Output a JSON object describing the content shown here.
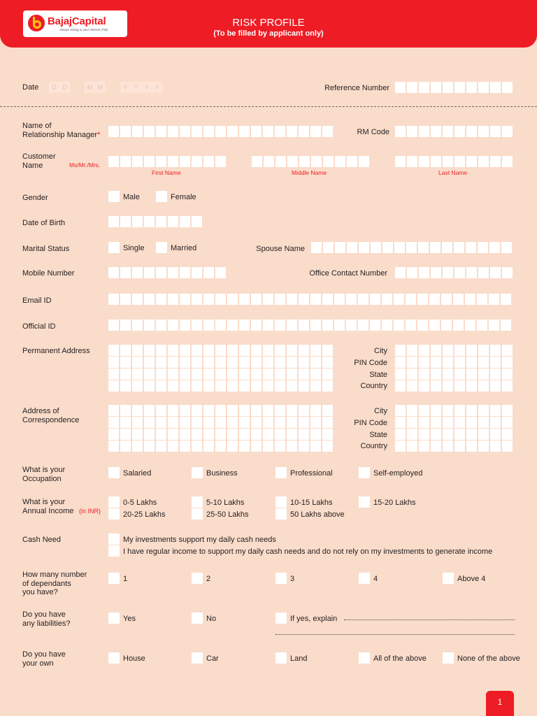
{
  "header": {
    "logo_text": "BajajCapital",
    "logo_tagline": "Always acting in your interest (TM)",
    "title": "RISK PROFILE",
    "subtitle": "(To be filled by applicant only)"
  },
  "colors": {
    "brand_red": "#ee1c25",
    "background": "#fadcca",
    "box": "#ffffff"
  },
  "date_row": {
    "date_label": "Date",
    "day_placeholders": [
      "D",
      "D"
    ],
    "month_placeholders": [
      "M",
      "M"
    ],
    "year_placeholders": [
      "Y",
      "Y",
      "Y",
      "Y"
    ],
    "reference_label": "Reference Number"
  },
  "fields": {
    "rm_name": "Name of\nRelationship Manager",
    "rm_required_mark": "*",
    "rm_code": "RM Code",
    "customer_name": "Customer\nName",
    "salutation": "Ms/Mr./Mrs.",
    "first_name": "First Name",
    "middle_name": "Middle Name",
    "last_name": "Last Name",
    "gender": "Gender",
    "dob": "Date of Birth",
    "marital_status": "Marital Status",
    "spouse_name": "Spouse Name",
    "mobile": "Mobile Number",
    "office_contact": "Office Contact Number",
    "email": "Email ID",
    "official_id": "Official ID",
    "permanent_address": "Permanent Address",
    "correspondence_address": "Address of\nCorrespondence",
    "city": "City",
    "pin": "PIN Code",
    "state": "State",
    "country": "Country",
    "occupation": "What is your\nOccupation",
    "income": "What is your\nAnnual Income",
    "income_unit": "(in INR)",
    "cash_need": "Cash Need",
    "dependants": "How many number\nof dependants\nyou have?",
    "liabilities": "Do you have\nany liabilities?",
    "own": "Do you have\nyour own"
  },
  "options": {
    "gender": [
      "Male",
      "Female"
    ],
    "marital": [
      "Single",
      "Married"
    ],
    "occupation": [
      "Salaried",
      "Business",
      "Professional",
      "Self-employed"
    ],
    "income": [
      "0-5 Lakhs",
      "5-10 Lakhs",
      "10-15 Lakhs",
      "15-20 Lakhs",
      "20-25 Lakhs",
      "25-50 Lakhs",
      "50 Lakhs above"
    ],
    "cash_need": [
      "My investments support my daily cash needs",
      "I have regular income to support my daily cash needs and do not rely on my investments to generate income"
    ],
    "dependants": [
      "1",
      "2",
      "3",
      "4",
      "Above 4"
    ],
    "liabilities": [
      "Yes",
      "No",
      "If yes, explain"
    ],
    "own": [
      "House",
      "Car",
      "Land",
      "All of the above",
      "None of the above"
    ]
  },
  "footer": {
    "page_number": "1"
  }
}
